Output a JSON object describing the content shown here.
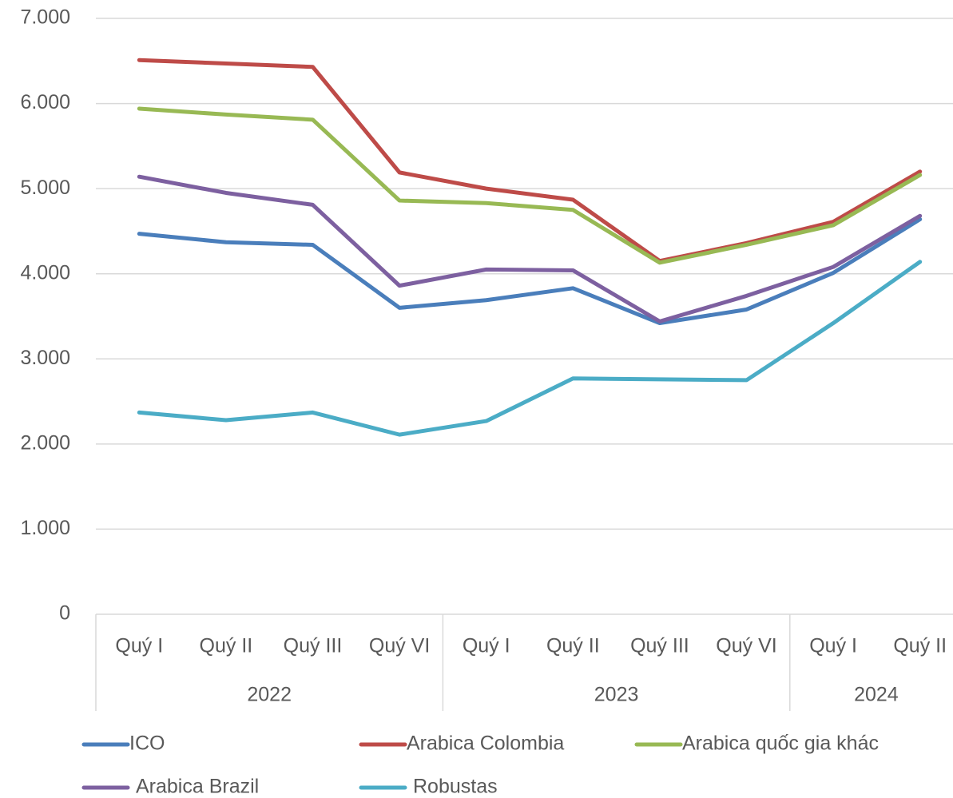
{
  "chart_data": {
    "type": "line",
    "categories": [
      "Quý I",
      "Quý II",
      "Quý III",
      "Quý VI",
      "Quý I",
      "Quý II",
      "Quý III",
      "Quý VI",
      "Quý I",
      "Quý II"
    ],
    "groups": [
      {
        "label": "2022",
        "span": 4
      },
      {
        "label": "2023",
        "span": 4
      },
      {
        "label": "2024",
        "span": 2
      }
    ],
    "series": [
      {
        "name": "ICO",
        "color": "#4a7ebb",
        "values": [
          4470,
          4370,
          4340,
          3600,
          3690,
          3830,
          3420,
          3580,
          4010,
          4640
        ]
      },
      {
        "name": "Arabica Colombia",
        "color": "#be4b48",
        "values": [
          6510,
          6470,
          6430,
          5190,
          5000,
          4870,
          4150,
          4360,
          4610,
          5200
        ]
      },
      {
        "name": "Arabica quốc gia khác",
        "color": "#98b954",
        "values": [
          5940,
          5870,
          5810,
          4860,
          4830,
          4750,
          4130,
          4340,
          4570,
          5160
        ]
      },
      {
        "name": "Arabica Brazil",
        "color": "#7d60a0",
        "values": [
          5140,
          4950,
          4810,
          3860,
          4050,
          4040,
          3440,
          3740,
          4080,
          4680
        ]
      },
      {
        "name": "Robustas",
        "color": "#4bacc6",
        "values": [
          2370,
          2280,
          2370,
          2110,
          2270,
          2770,
          2760,
          2750,
          3420,
          4140
        ]
      }
    ],
    "ylim": [
      0,
      7000
    ],
    "yticks": [
      0,
      {
        "value": 1000,
        "label": "1.000"
      },
      {
        "value": 2000,
        "label": "2.000"
      },
      {
        "value": 3000,
        "label": "3.000"
      },
      {
        "value": 4000,
        "label": "4.000"
      },
      {
        "value": 5000,
        "label": "5.000"
      },
      {
        "value": 6000,
        "label": "6.000"
      },
      {
        "value": 7000,
        "label": "7.000"
      }
    ],
    "grid": true,
    "legend": "bottom"
  }
}
